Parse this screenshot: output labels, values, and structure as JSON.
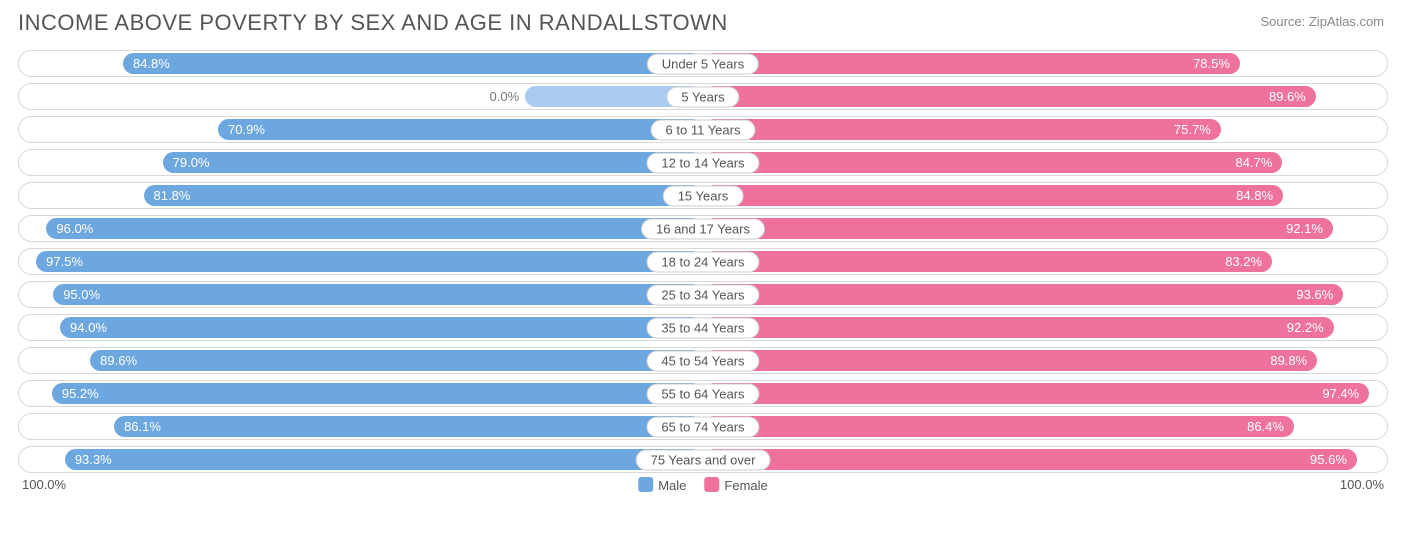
{
  "title": "INCOME ABOVE POVERTY BY SEX AND AGE IN RANDALLSTOWN",
  "source": "Source: ZipAtlas.com",
  "chart": {
    "type": "diverging-bar",
    "male_color": "#6da7e0",
    "female_color": "#ef719e",
    "male_color_light": "#a9cbef",
    "border_color": "#d7d7d7",
    "bar_bg": "#ffffff",
    "label_fontsize": 13,
    "title_fontsize": 22,
    "title_color": "#555555",
    "value_text_color": "#ffffff",
    "axis_max": 100.0,
    "axis_left_label": "100.0%",
    "axis_right_label": "100.0%",
    "legend": {
      "male": "Male",
      "female": "Female"
    },
    "rows": [
      {
        "category": "Under 5 Years",
        "male": 84.8,
        "male_label": "84.8%",
        "male_light": false,
        "female": 78.5,
        "female_label": "78.5%"
      },
      {
        "category": "5 Years",
        "male": 0.0,
        "male_label": "0.0%",
        "male_light": true,
        "female": 89.6,
        "female_label": "89.6%"
      },
      {
        "category": "6 to 11 Years",
        "male": 70.9,
        "male_label": "70.9%",
        "male_light": false,
        "female": 75.7,
        "female_label": "75.7%"
      },
      {
        "category": "12 to 14 Years",
        "male": 79.0,
        "male_label": "79.0%",
        "male_light": false,
        "female": 84.7,
        "female_label": "84.7%"
      },
      {
        "category": "15 Years",
        "male": 81.8,
        "male_label": "81.8%",
        "male_light": false,
        "female": 84.8,
        "female_label": "84.8%"
      },
      {
        "category": "16 and 17 Years",
        "male": 96.0,
        "male_label": "96.0%",
        "male_light": false,
        "female": 92.1,
        "female_label": "92.1%"
      },
      {
        "category": "18 to 24 Years",
        "male": 97.5,
        "male_label": "97.5%",
        "male_light": false,
        "female": 83.2,
        "female_label": "83.2%"
      },
      {
        "category": "25 to 34 Years",
        "male": 95.0,
        "male_label": "95.0%",
        "male_light": false,
        "female": 93.6,
        "female_label": "93.6%"
      },
      {
        "category": "35 to 44 Years",
        "male": 94.0,
        "male_label": "94.0%",
        "male_light": false,
        "female": 92.2,
        "female_label": "92.2%"
      },
      {
        "category": "45 to 54 Years",
        "male": 89.6,
        "male_label": "89.6%",
        "male_light": false,
        "female": 89.8,
        "female_label": "89.8%"
      },
      {
        "category": "55 to 64 Years",
        "male": 95.2,
        "male_label": "95.2%",
        "male_light": false,
        "female": 97.4,
        "female_label": "97.4%"
      },
      {
        "category": "65 to 74 Years",
        "male": 86.1,
        "male_label": "86.1%",
        "male_light": false,
        "female": 86.4,
        "female_label": "86.4%"
      },
      {
        "category": "75 Years and over",
        "male": 93.3,
        "male_label": "93.3%",
        "male_light": false,
        "female": 95.6,
        "female_label": "95.6%"
      }
    ]
  }
}
